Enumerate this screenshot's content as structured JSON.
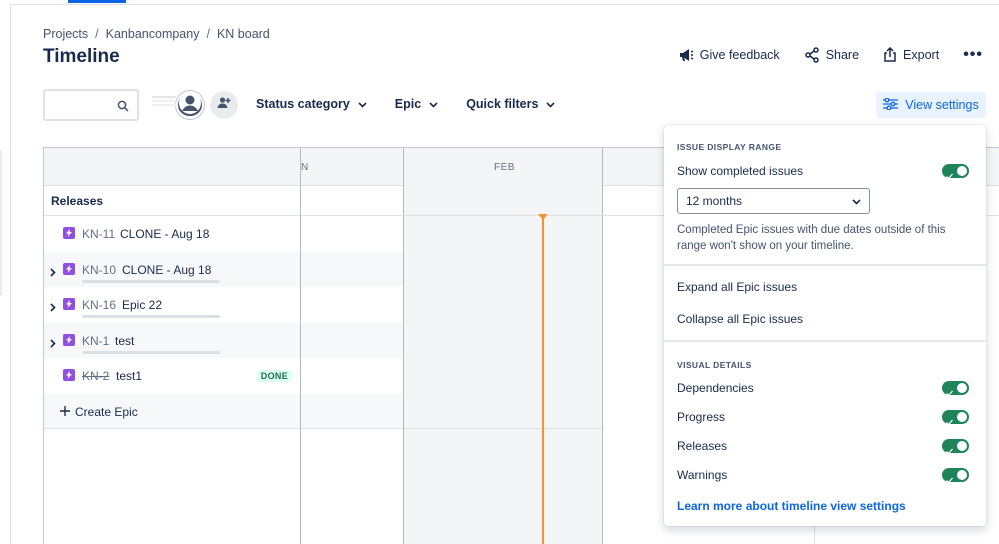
{
  "breadcrumb": [
    "Projects",
    "Kanbancompany",
    "KN board"
  ],
  "page_title": "Timeline",
  "header_actions": {
    "feedback": "Give feedback",
    "share": "Share",
    "export": "Export",
    "more": "•••"
  },
  "search": {
    "placeholder": "",
    "value": ""
  },
  "filters": {
    "status_category": "Status category",
    "epic": "Epic",
    "quick_filters": "Quick filters"
  },
  "view_settings_label": "View settings",
  "timeline": {
    "month_left_partial": "N",
    "month_feb": "FEB",
    "releases_label": "Releases",
    "rows": [
      {
        "key": "KN-11",
        "summary": "CLONE - Aug 18",
        "expandable": false,
        "done": false
      },
      {
        "key": "KN-10",
        "summary": "CLONE - Aug 18",
        "expandable": true,
        "done": false
      },
      {
        "key": "KN-16",
        "summary": "Epic 22",
        "expandable": true,
        "done": false
      },
      {
        "key": "KN-1",
        "summary": "test",
        "expandable": true,
        "done": false
      },
      {
        "key": "KN-2",
        "summary": "test1",
        "expandable": false,
        "done": true,
        "status": "DONE"
      }
    ],
    "create_epic": "Create Epic"
  },
  "panel": {
    "issue_display_range": "ISSUE DISPLAY RANGE",
    "show_completed": "Show completed issues",
    "range_value": "12 months",
    "note": "Completed Epic issues with due dates outside of this range won't show on your timeline.",
    "expand_all": "Expand all Epic issues",
    "collapse_all": "Collapse all Epic issues",
    "visual_details": "VISUAL DETAILS",
    "dependencies": "Dependencies",
    "progress": "Progress",
    "releases": "Releases",
    "warnings": "Warnings",
    "learn_more": "Learn more about timeline view settings"
  },
  "colors": {
    "accent": "#0c66e4",
    "toggle_on": "#1f845a",
    "epic_purple": "#904ee2",
    "today_line": "#f79233"
  }
}
